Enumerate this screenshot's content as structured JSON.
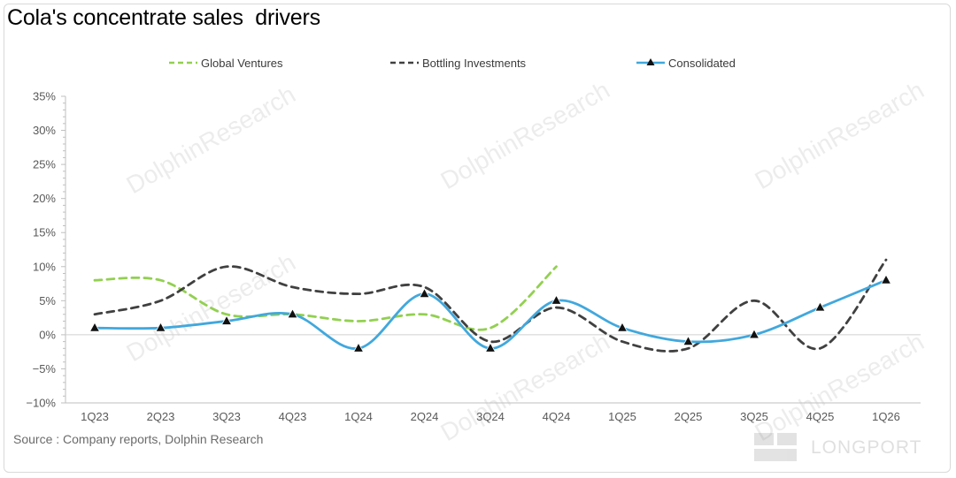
{
  "title": "Cola's concentrate sales  drivers",
  "source": "Source : Company reports, Dolphin Research",
  "watermark": "DolphinResearch",
  "brand_logo": "LONGPORT",
  "colors": {
    "global_ventures": "#92d050",
    "bottling_investments": "#404040",
    "consolidated": "#41a8dd",
    "axis": "#bfbfbf",
    "tick_text": "#595959"
  },
  "legend": [
    {
      "label": "Global Ventures"
    },
    {
      "label": "Bottling Investments"
    },
    {
      "label": "Consolidated"
    }
  ],
  "chart_data": {
    "type": "line",
    "title": "Cola's concentrate sales  drivers",
    "categories": [
      "1Q23",
      "2Q23",
      "3Q23",
      "4Q23",
      "1Q24",
      "2Q24",
      "3Q24",
      "4Q24",
      "1Q25",
      "2Q25",
      "3Q25",
      "4Q25",
      "1Q26"
    ],
    "y_ticks": [
      "35%",
      "30%",
      "25%",
      "20%",
      "15%",
      "10%",
      "5%",
      "0%",
      "−5%",
      "−10%"
    ],
    "ylim": [
      -10,
      35
    ],
    "y_unit": "%",
    "grid": false,
    "legend_position": "top",
    "series": [
      {
        "name": "Global Ventures",
        "style": "dashed",
        "values": [
          8,
          8,
          3,
          3,
          2,
          3,
          1,
          10,
          null,
          null,
          null,
          null,
          null
        ]
      },
      {
        "name": "Bottling Investments",
        "style": "dashed",
        "values": [
          3,
          5,
          10,
          7,
          6,
          7,
          -1,
          4,
          -1,
          -2,
          5,
          -2,
          11
        ]
      },
      {
        "name": "Consolidated",
        "style": "solid",
        "marker": "triangle",
        "values": [
          1,
          1,
          2,
          3,
          -2,
          6,
          -2,
          5,
          1,
          -1,
          0,
          4,
          8
        ]
      }
    ]
  }
}
